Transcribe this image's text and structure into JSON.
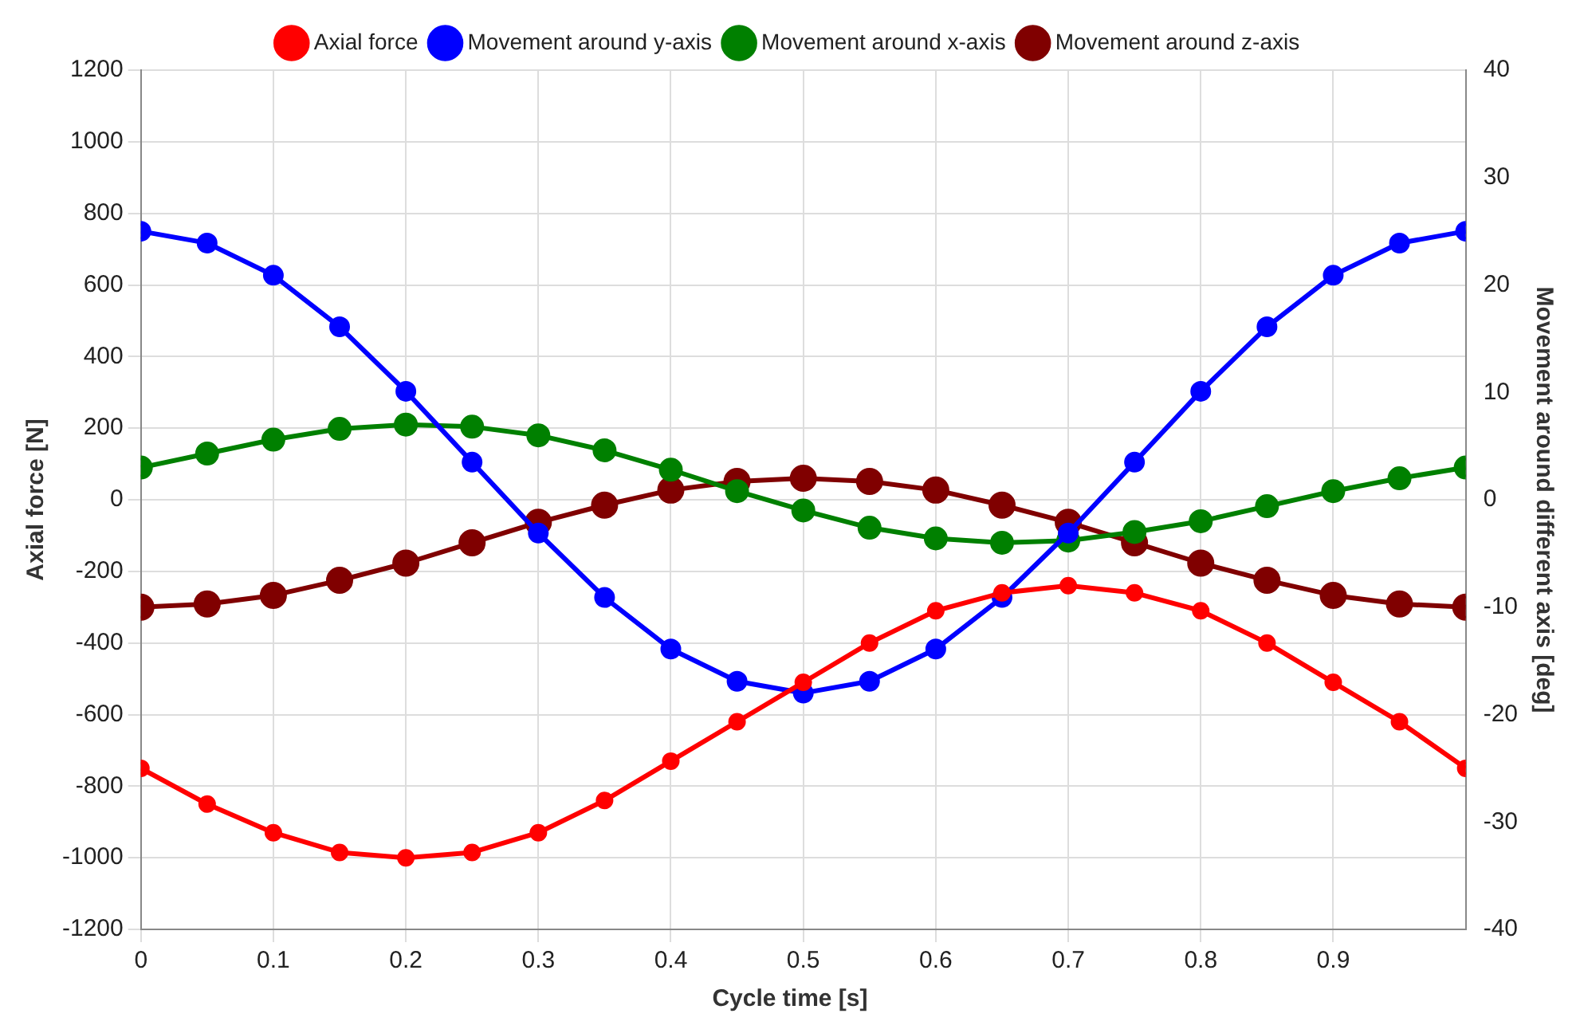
{
  "chart_data": {
    "type": "line",
    "xlabel": "Cycle time [s]",
    "ylabel": "Axial force [N]",
    "y2label": "Movement around different axis [deg]",
    "x": [
      0,
      0.05,
      0.1,
      0.15,
      0.2,
      0.25,
      0.3,
      0.35,
      0.4,
      0.45,
      0.5,
      0.55,
      0.6,
      0.65,
      0.7,
      0.75,
      0.8,
      0.85,
      0.9,
      0.95,
      1.0
    ],
    "xlim": [
      0,
      1
    ],
    "xticks": [
      0,
      {
        "value": 0.1,
        "label": "0.1"
      },
      {
        "value": 0.2,
        "label": "0.2"
      },
      {
        "value": 0.3,
        "label": "0.3"
      },
      {
        "value": 0.4,
        "label": "0.4"
      },
      {
        "value": 0.5,
        "label": "0.5"
      },
      {
        "value": 0.6,
        "label": "0.6"
      },
      {
        "value": 0.7,
        "label": "0.7"
      },
      {
        "value": 0.8,
        "label": "0.8"
      },
      {
        "value": 0.9,
        "label": "0.9"
      }
    ],
    "ylim": [
      -1200,
      1200
    ],
    "yticks": [
      -1200,
      -1000,
      -800,
      -600,
      -400,
      -200,
      0,
      200,
      400,
      600,
      800,
      1000,
      1200
    ],
    "y2lim": [
      -40,
      40
    ],
    "y2ticks": [
      -40,
      -30,
      -20,
      -10,
      0,
      10,
      20,
      30,
      40
    ],
    "grid": true,
    "legend": "top",
    "marker": "circle",
    "series": [
      {
        "name": "Axial force",
        "color": "#ff0000",
        "values": [
          -750,
          -850,
          -930,
          -985,
          -1000,
          -985,
          -930,
          -840,
          -730,
          -620,
          -510,
          -400,
          -310,
          -260,
          -240,
          -260,
          -310,
          -400,
          -510,
          -620,
          -750
        ]
      },
      {
        "name": "Movement around y-axis",
        "color": "#0000ff",
        "axis": "y2",
        "values": [
          25,
          23.9,
          20.9,
          16.1,
          10.1,
          3.5,
          -3.1,
          -9.1,
          -13.9,
          -16.9,
          -18,
          -16.9,
          -13.9,
          -9.1,
          -3.1,
          3.5,
          10.1,
          16.1,
          20.9,
          23.9,
          25
        ]
      },
      {
        "name": "Movement around x-axis",
        "color": "#008000",
        "axis": "y2",
        "values": [
          3,
          4.3,
          5.6,
          6.6,
          7,
          6.8,
          6,
          4.6,
          2.8,
          0.8,
          -1,
          -2.6,
          -3.6,
          -4,
          -3.8,
          -3,
          -2,
          -0.6,
          0.8,
          2,
          3
        ]
      },
      {
        "name": "Movement around z-axis",
        "color": "#800000",
        "axis": "y2",
        "values": [
          -10,
          -9.7,
          -8.9,
          -7.5,
          -5.9,
          -4,
          -2.1,
          -0.5,
          0.9,
          1.7,
          2,
          1.7,
          0.9,
          -0.5,
          -2.1,
          -4,
          -5.9,
          -7.5,
          -8.9,
          -9.7,
          -10
        ]
      }
    ]
  }
}
